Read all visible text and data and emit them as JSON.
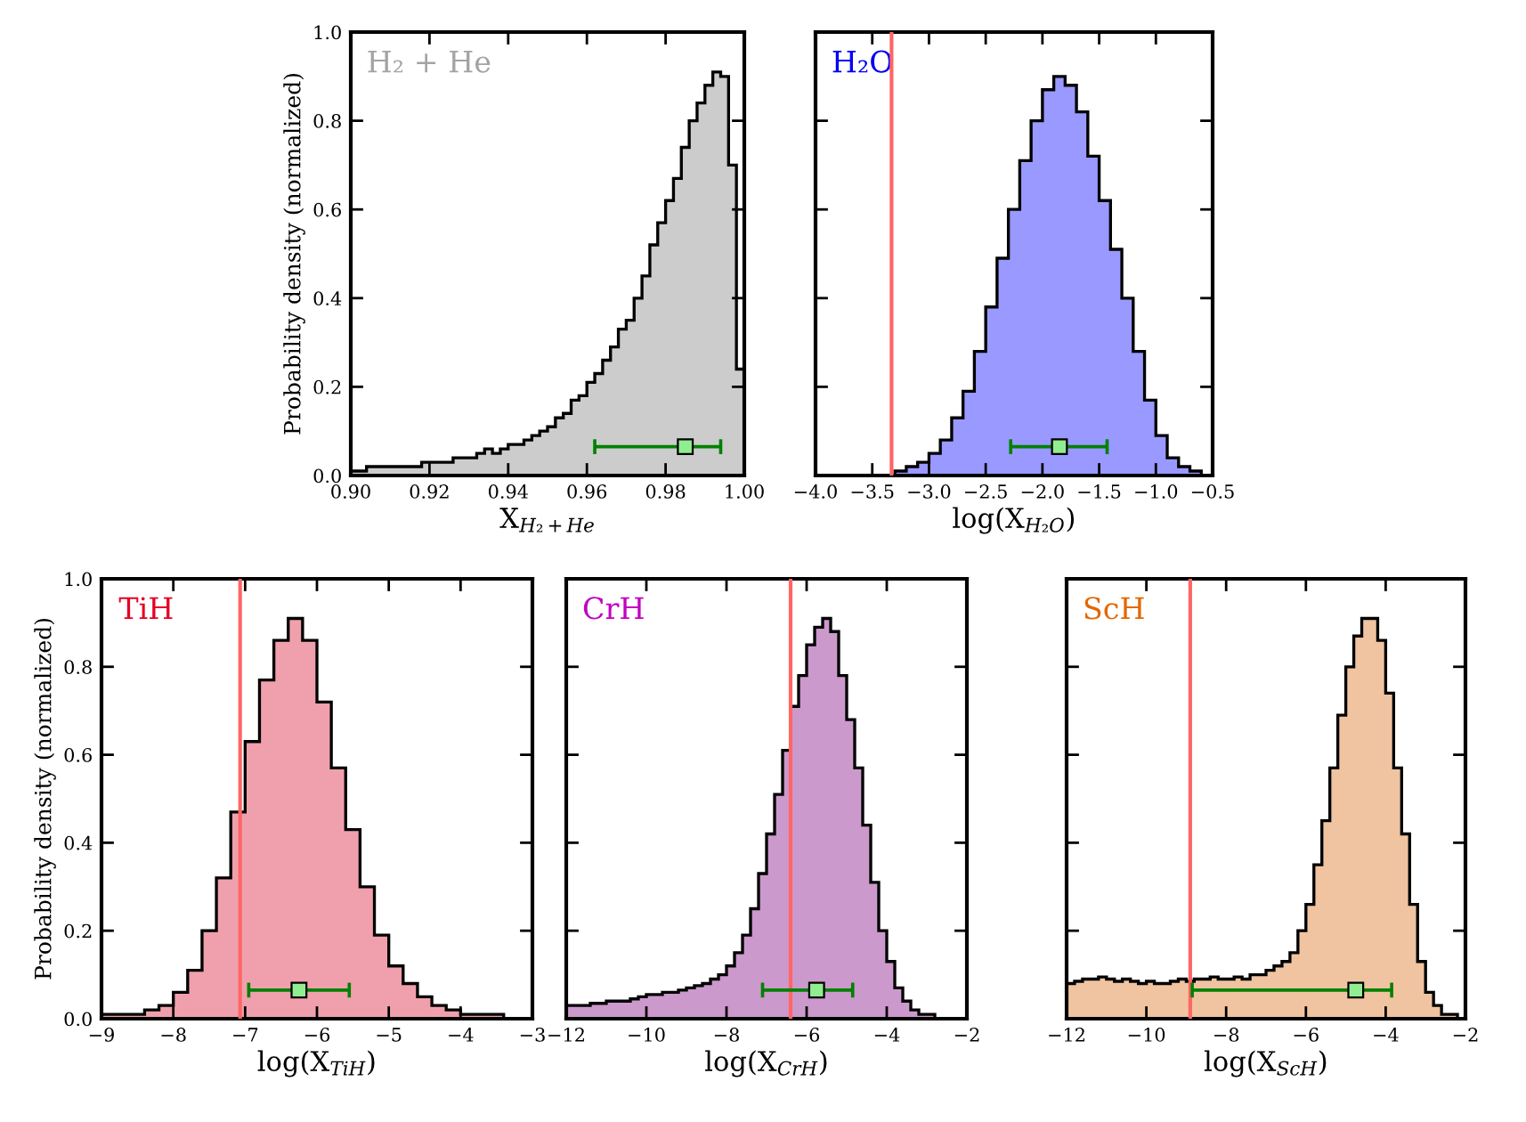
{
  "chart_data": [
    {
      "type": "histogram",
      "xlabel": "X$_{H₂+He}$",
      "ylabel": "Probability density (normalized)",
      "annotations": [
        "H₂ + He"
      ],
      "bins": [
        0.9,
        0.902,
        0.904,
        0.906,
        0.908,
        0.91,
        0.912,
        0.914,
        0.916,
        0.918,
        0.92,
        0.922,
        0.924,
        0.926,
        0.928,
        0.93,
        0.932,
        0.934,
        0.936,
        0.938,
        0.94,
        0.942,
        0.944,
        0.946,
        0.948,
        0.95,
        0.952,
        0.954,
        0.956,
        0.958,
        0.96,
        0.962,
        0.964,
        0.966,
        0.968,
        0.97,
        0.972,
        0.974,
        0.976,
        0.978,
        0.98,
        0.982,
        0.984,
        0.986,
        0.988,
        0.99,
        0.992,
        0.994,
        0.996,
        0.998,
        1.0
      ],
      "values": [
        0.01,
        0.01,
        0.02,
        0.02,
        0.02,
        0.02,
        0.02,
        0.02,
        0.02,
        0.03,
        0.03,
        0.03,
        0.03,
        0.04,
        0.04,
        0.04,
        0.05,
        0.06,
        0.05,
        0.06,
        0.07,
        0.07,
        0.08,
        0.09,
        0.1,
        0.11,
        0.13,
        0.14,
        0.17,
        0.18,
        0.21,
        0.23,
        0.26,
        0.29,
        0.33,
        0.35,
        0.4,
        0.45,
        0.52,
        0.57,
        0.62,
        0.67,
        0.74,
        0.8,
        0.84,
        0.88,
        0.91,
        0.9,
        0.7,
        0.24
      ],
      "color": "#cccccc",
      "series": [
        {
          "type": "scatter",
          "x": [
            0.985
          ],
          "values": [
            0.065
          ],
          "xerrors": [
            [
              0.962,
              0.994
            ]
          ],
          "color": "#90ee90",
          "marker": "square"
        }
      ],
      "xlim": [
        0.9,
        1.0
      ],
      "ylim": [
        0,
        1.0
      ],
      "xticks": [
        {
          "value": 0.9,
          "label": "0.90"
        },
        {
          "value": 0.92,
          "label": "0.92"
        },
        {
          "value": 0.94,
          "label": "0.94"
        },
        {
          "value": 0.96,
          "label": "0.96"
        },
        {
          "value": 0.98,
          "label": "0.98"
        },
        {
          "value": 1.0,
          "label": "1.00"
        }
      ],
      "yticks": [
        {
          "value": 0,
          "label": "0.0"
        },
        {
          "value": 0.2,
          "label": "0.2"
        },
        {
          "value": 0.4,
          "label": "0.4"
        },
        {
          "value": 0.6,
          "label": "0.6"
        },
        {
          "value": 0.8,
          "label": "0.8"
        },
        {
          "value": 1.0,
          "label": "1.0"
        }
      ]
    },
    {
      "type": "histogram",
      "xlabel": "log(X$_{H₂O}$)",
      "annotations": [
        "H₂O"
      ],
      "bins": [
        -3.3,
        -3.2,
        -3.1,
        -3.0,
        -2.9,
        -2.8,
        -2.7,
        -2.6,
        -2.5,
        -2.4,
        -2.3,
        -2.2,
        -2.1,
        -2.0,
        -1.9,
        -1.8,
        -1.7,
        -1.6,
        -1.5,
        -1.4,
        -1.3,
        -1.2,
        -1.1,
        -1.0,
        -0.9,
        -0.8,
        -0.7,
        -0.6
      ],
      "values": [
        0.01,
        0.02,
        0.03,
        0.05,
        0.08,
        0.13,
        0.19,
        0.28,
        0.38,
        0.49,
        0.6,
        0.71,
        0.8,
        0.87,
        0.9,
        0.88,
        0.82,
        0.72,
        0.62,
        0.51,
        0.4,
        0.28,
        0.17,
        0.09,
        0.04,
        0.02,
        0.01
      ],
      "color": "#9999ff",
      "series": [
        {
          "type": "scatter",
          "x": [
            -1.85
          ],
          "values": [
            0.065
          ],
          "xerrors": [
            [
              -2.28,
              -1.43
            ]
          ],
          "color": "#90ee90",
          "marker": "square"
        }
      ],
      "ref_lines": [
        {
          "axis": "x",
          "value": -3.33,
          "color": "#ff6666"
        }
      ],
      "xlim": [
        -4.0,
        -0.5
      ],
      "ylim": [
        0,
        1.0
      ],
      "tick_labels": "x",
      "xticks": [
        {
          "value": -4.0,
          "label": "−4.0"
        },
        {
          "value": -3.5,
          "label": "−3.5"
        },
        {
          "value": -3.0,
          "label": "−3.0"
        },
        {
          "value": -2.5,
          "label": "−2.5"
        },
        {
          "value": -2.0,
          "label": "−2.0"
        },
        {
          "value": -1.5,
          "label": "−1.5"
        },
        {
          "value": -1.0,
          "label": "−1.0"
        },
        {
          "value": -0.5,
          "label": "−0.5"
        }
      ],
      "yticks": [
        {
          "value": 0,
          "label": null
        },
        {
          "value": 0.2,
          "label": null
        },
        {
          "value": 0.4,
          "label": null
        },
        {
          "value": 0.6,
          "label": null
        },
        {
          "value": 0.8,
          "label": null
        },
        {
          "value": 1.0,
          "label": null
        }
      ]
    },
    {
      "type": "histogram",
      "xlabel": "log(X$_{TiH}$)",
      "ylabel": "Probability density (normalized)",
      "annotations": [
        "TiH"
      ],
      "bins": [
        -9.0,
        -8.8,
        -8.6,
        -8.4,
        -8.2,
        -8.0,
        -7.8,
        -7.6,
        -7.4,
        -7.2,
        -7.0,
        -6.8,
        -6.6,
        -6.4,
        -6.2,
        -6.0,
        -5.8,
        -5.6,
        -5.4,
        -5.2,
        -5.0,
        -4.8,
        -4.6,
        -4.4,
        -4.2,
        -4.0,
        -3.8,
        -3.6,
        -3.4,
        -3.2,
        -3.0
      ],
      "values": [
        0.01,
        0.01,
        0.01,
        0.02,
        0.03,
        0.06,
        0.11,
        0.2,
        0.32,
        0.47,
        0.63,
        0.77,
        0.86,
        0.91,
        0.86,
        0.72,
        0.57,
        0.43,
        0.3,
        0.19,
        0.12,
        0.08,
        0.05,
        0.03,
        0.02,
        0.01,
        0.01,
        0.01,
        0.0,
        0.0
      ],
      "color": "#f0a0ac",
      "series": [
        {
          "type": "scatter",
          "x": [
            -6.25
          ],
          "values": [
            0.065
          ],
          "xerrors": [
            [
              -6.95,
              -5.55
            ]
          ],
          "color": "#90ee90",
          "marker": "square"
        }
      ],
      "ref_lines": [
        {
          "axis": "x",
          "value": -7.07,
          "color": "#ff6666"
        }
      ],
      "xlim": [
        -9,
        -3
      ],
      "ylim": [
        0,
        1.0
      ],
      "xticks": [
        {
          "value": -9,
          "label": "−9"
        },
        {
          "value": -8,
          "label": "−8"
        },
        {
          "value": -7,
          "label": "−7"
        },
        {
          "value": -6,
          "label": "−6"
        },
        {
          "value": -5,
          "label": "−5"
        },
        {
          "value": -4,
          "label": "−4"
        },
        {
          "value": -3,
          "label": "−3"
        }
      ],
      "yticks": [
        {
          "value": 0,
          "label": "0.0"
        },
        {
          "value": 0.2,
          "label": "0.2"
        },
        {
          "value": 0.4,
          "label": "0.4"
        },
        {
          "value": 0.6,
          "label": "0.6"
        },
        {
          "value": 0.8,
          "label": "0.8"
        },
        {
          "value": 1.0,
          "label": "1.0"
        }
      ]
    },
    {
      "type": "histogram",
      "xlabel": "log(X$_{CrH}$)",
      "annotations": [
        "CrH"
      ],
      "bins": [
        -12.0,
        -11.8,
        -11.6,
        -11.4,
        -11.2,
        -11.0,
        -10.8,
        -10.6,
        -10.4,
        -10.2,
        -10.0,
        -9.8,
        -9.6,
        -9.4,
        -9.2,
        -9.0,
        -8.8,
        -8.6,
        -8.4,
        -8.2,
        -8.0,
        -7.8,
        -7.6,
        -7.4,
        -7.2,
        -7.0,
        -6.8,
        -6.6,
        -6.4,
        -6.2,
        -6.0,
        -5.8,
        -5.6,
        -5.4,
        -5.2,
        -5.0,
        -4.8,
        -4.6,
        -4.4,
        -4.2,
        -4.0,
        -3.8,
        -3.6,
        -3.4,
        -3.2,
        -3.0,
        -2.8,
        -2.6,
        -2.4,
        -2.2,
        -2.0
      ],
      "values": [
        0.03,
        0.03,
        0.03,
        0.035,
        0.035,
        0.04,
        0.04,
        0.04,
        0.045,
        0.05,
        0.055,
        0.055,
        0.06,
        0.06,
        0.065,
        0.07,
        0.075,
        0.08,
        0.09,
        0.1,
        0.12,
        0.15,
        0.19,
        0.25,
        0.33,
        0.42,
        0.51,
        0.61,
        0.71,
        0.78,
        0.85,
        0.89,
        0.91,
        0.88,
        0.78,
        0.68,
        0.57,
        0.44,
        0.31,
        0.2,
        0.13,
        0.07,
        0.04,
        0.02,
        0.01,
        0.01,
        0.0,
        0.0,
        0.0,
        0.0
      ],
      "color": "#cc99cc",
      "series": [
        {
          "type": "scatter",
          "x": [
            -5.75
          ],
          "values": [
            0.065
          ],
          "xerrors": [
            [
              -7.1,
              -4.85
            ]
          ],
          "color": "#90ee90",
          "marker": "square"
        }
      ],
      "ref_lines": [
        {
          "axis": "x",
          "value": -6.4,
          "color": "#ff6666"
        }
      ],
      "xlim": [
        -12,
        -2
      ],
      "ylim": [
        0,
        1.0
      ],
      "tick_labels": "x",
      "xticks": [
        {
          "value": -12,
          "label": "−12"
        },
        {
          "value": -10,
          "label": "−10"
        },
        {
          "value": -8,
          "label": "−8"
        },
        {
          "value": -6,
          "label": "−6"
        },
        {
          "value": -4,
          "label": "−4"
        },
        {
          "value": -2,
          "label": "−2"
        }
      ],
      "yticks": [
        {
          "value": 0,
          "label": null
        },
        {
          "value": 0.2,
          "label": null
        },
        {
          "value": 0.4,
          "label": null
        },
        {
          "value": 0.6,
          "label": null
        },
        {
          "value": 0.8,
          "label": null
        },
        {
          "value": 1.0,
          "label": null
        }
      ]
    },
    {
      "type": "histogram",
      "xlabel": "log(X$_{ScH}$)",
      "annotations": [
        "ScH"
      ],
      "bins": [
        -12.0,
        -11.8,
        -11.6,
        -11.4,
        -11.2,
        -11.0,
        -10.8,
        -10.6,
        -10.4,
        -10.2,
        -10.0,
        -9.8,
        -9.6,
        -9.4,
        -9.2,
        -9.0,
        -8.8,
        -8.6,
        -8.4,
        -8.2,
        -8.0,
        -7.8,
        -7.6,
        -7.4,
        -7.2,
        -7.0,
        -6.8,
        -6.6,
        -6.4,
        -6.2,
        -6.0,
        -5.8,
        -5.6,
        -5.4,
        -5.2,
        -5.0,
        -4.8,
        -4.6,
        -4.4,
        -4.2,
        -4.0,
        -3.8,
        -3.6,
        -3.4,
        -3.2,
        -3.0,
        -2.8,
        -2.6,
        -2.4,
        -2.2,
        -2.0
      ],
      "values": [
        0.08,
        0.085,
        0.09,
        0.09,
        0.095,
        0.09,
        0.085,
        0.09,
        0.085,
        0.08,
        0.085,
        0.08,
        0.08,
        0.085,
        0.09,
        0.085,
        0.09,
        0.09,
        0.095,
        0.09,
        0.09,
        0.095,
        0.09,
        0.1,
        0.1,
        0.11,
        0.12,
        0.13,
        0.15,
        0.2,
        0.26,
        0.35,
        0.45,
        0.57,
        0.69,
        0.8,
        0.87,
        0.91,
        0.91,
        0.86,
        0.74,
        0.57,
        0.42,
        0.26,
        0.13,
        0.06,
        0.03,
        0.01,
        0.01,
        0.0
      ],
      "color": "#f0c4a0",
      "series": [
        {
          "type": "scatter",
          "x": [
            -4.75
          ],
          "values": [
            0.065
          ],
          "xerrors": [
            [
              -8.85,
              -3.85
            ]
          ],
          "color": "#90ee90",
          "marker": "square"
        }
      ],
      "ref_lines": [
        {
          "axis": "x",
          "value": -8.9,
          "color": "#ff6666"
        }
      ],
      "xlim": [
        -12,
        -2
      ],
      "ylim": [
        0,
        1.0
      ],
      "tick_labels": "x",
      "xticks": [
        {
          "value": -12,
          "label": "−12"
        },
        {
          "value": -10,
          "label": "−10"
        },
        {
          "value": -8,
          "label": "−8"
        },
        {
          "value": -6,
          "label": "−6"
        },
        {
          "value": -4,
          "label": "−4"
        },
        {
          "value": -2,
          "label": "−2"
        }
      ],
      "yticks": [
        {
          "value": 0,
          "label": null
        },
        {
          "value": 0.2,
          "label": null
        },
        {
          "value": 0.4,
          "label": null
        },
        {
          "value": 0.6,
          "label": null
        },
        {
          "value": 0.8,
          "label": null
        },
        {
          "value": 1.0,
          "label": null
        }
      ]
    }
  ]
}
